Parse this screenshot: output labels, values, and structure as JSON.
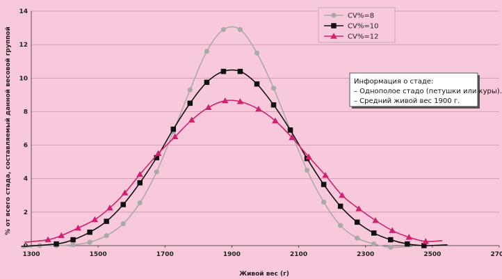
{
  "chart_data": {
    "type": "line",
    "xlabel": "Живой вес (г)",
    "ylabel": "% от всего стада, составляемый данной весовой группой",
    "xlim": [
      1300,
      2700
    ],
    "ylim": [
      0,
      14
    ],
    "x_ticks": [
      1300,
      1500,
      1700,
      1900,
      2100,
      2300,
      2500,
      2700
    ],
    "y_ticks": [
      0,
      2,
      4,
      6,
      8,
      10,
      12,
      14
    ],
    "grid": "horizontal",
    "legend_position": "top-right",
    "series": [
      {
        "name": "CV%=8",
        "color": "#a9a9a9",
        "marker": "circle",
        "x": [
          1325,
          1375,
          1425,
          1475,
          1525,
          1575,
          1625,
          1675,
          1725,
          1775,
          1825,
          1875,
          1925,
          1975,
          2025,
          2075,
          2125,
          2175,
          2225,
          2275,
          2325,
          2375
        ],
        "values": [
          0.0,
          0.0,
          0.05,
          0.2,
          0.6,
          1.3,
          2.55,
          4.4,
          6.8,
          9.3,
          11.6,
          12.9,
          12.9,
          11.5,
          9.4,
          6.9,
          4.5,
          2.6,
          1.2,
          0.45,
          0.1,
          -0.1
        ]
      },
      {
        "name": "CV%=10",
        "color": "#111111",
        "marker": "square",
        "x": [
          1375,
          1425,
          1475,
          1525,
          1575,
          1625,
          1675,
          1725,
          1775,
          1825,
          1875,
          1925,
          1975,
          2025,
          2075,
          2125,
          2175,
          2225,
          2275,
          2325,
          2375,
          2425,
          2475
        ],
        "values": [
          0.1,
          0.35,
          0.8,
          1.45,
          2.45,
          3.75,
          5.25,
          6.95,
          8.5,
          9.75,
          10.4,
          10.4,
          9.65,
          8.4,
          6.9,
          5.2,
          3.65,
          2.35,
          1.4,
          0.75,
          0.35,
          0.1,
          0.0
        ]
      },
      {
        "name": "CV%=12",
        "color": "#d0206e",
        "marker": "triangle",
        "x": [
          1350,
          1390,
          1440,
          1490,
          1535,
          1580,
          1625,
          1680,
          1730,
          1780,
          1830,
          1880,
          1925,
          1980,
          2030,
          2080,
          2130,
          2180,
          2230,
          2280,
          2330,
          2380,
          2430,
          2480
        ],
        "values": [
          0.35,
          0.6,
          1.05,
          1.55,
          2.25,
          3.15,
          4.25,
          5.5,
          6.5,
          7.5,
          8.25,
          8.65,
          8.6,
          8.15,
          7.45,
          6.45,
          5.3,
          4.2,
          3.0,
          2.2,
          1.5,
          0.9,
          0.5,
          0.25
        ]
      }
    ],
    "annotation": {
      "lines": [
        "Информация о стаде:",
        "– Однополое стадо (петушки или куры).",
        "– Средний живой вес   1900 г."
      ]
    }
  }
}
